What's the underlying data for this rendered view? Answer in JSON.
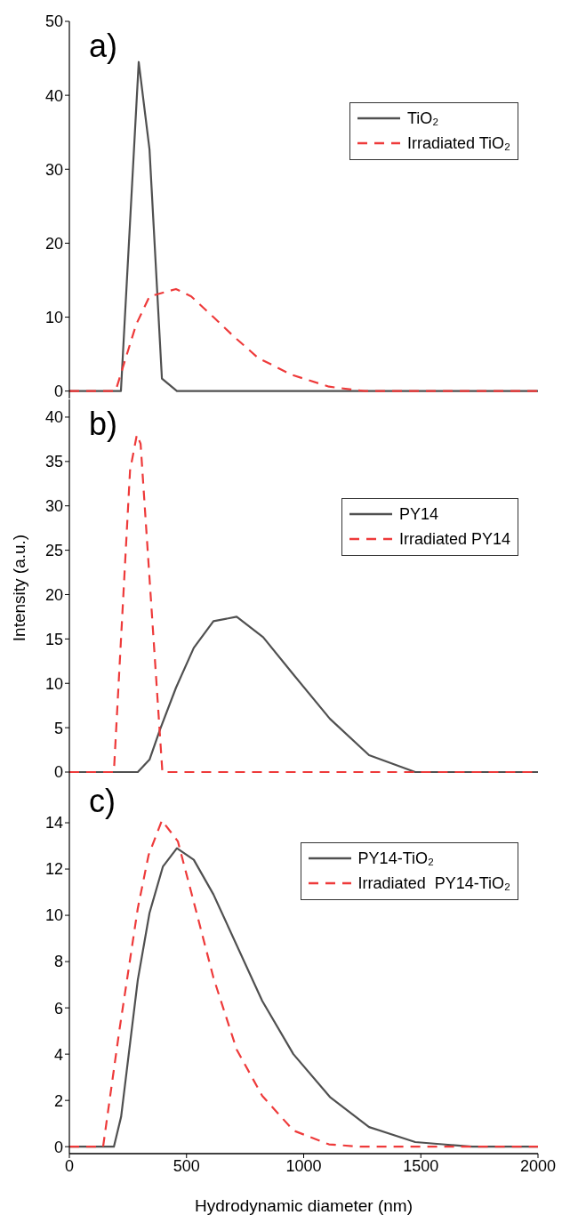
{
  "chart_data": [
    {
      "type": "line",
      "annotations": [
        "a)"
      ],
      "xlim": [
        0,
        2000
      ],
      "xticks": [
        0,
        500,
        1000,
        1500,
        2000
      ],
      "ylim": [
        -1,
        50
      ],
      "yticks": [
        0,
        10,
        20,
        30,
        40,
        50
      ],
      "tick_labels": "y",
      "legend": "top right",
      "grid": false,
      "marker": "none",
      "series": [
        {
          "name": "TiO₂",
          "color": "#505050",
          "line_style": "solid",
          "x": [
            0,
            220,
            296,
            342,
            395,
            459,
            2000
          ],
          "values": [
            0,
            0,
            44.5,
            32.7,
            1.7,
            0,
            0
          ]
        },
        {
          "name": "Irradiated TiO₂",
          "color": "#ee3a3a",
          "line_style": "dashed",
          "x": [
            0,
            197,
            285,
            342,
            455,
            520,
            615,
            698,
            805,
            949,
            1108,
            1260,
            2000
          ],
          "values": [
            0,
            0,
            9,
            12.8,
            13.8,
            12.8,
            10,
            7.5,
            4.5,
            2.2,
            0.6,
            0,
            0
          ]
        }
      ]
    },
    {
      "type": "line",
      "annotations": [
        "b)"
      ],
      "ylabel": "Intensity (a.u.)",
      "xlim": [
        0,
        2000
      ],
      "xticks": [
        0,
        500,
        1000,
        1500,
        2000
      ],
      "ylim": [
        -0.5,
        42
      ],
      "yticks": [
        0,
        5,
        10,
        15,
        20,
        25,
        30,
        35,
        40
      ],
      "tick_labels": "y",
      "legend": "top right",
      "grid": false,
      "marker": "none",
      "series": [
        {
          "name": "PY14",
          "color": "#505050",
          "line_style": "solid",
          "x": [
            0,
            292,
            342,
            387,
            455,
            531,
            615,
            714,
            827,
            956,
            1112,
            1279,
            1476,
            2000
          ],
          "values": [
            0,
            0,
            1.4,
            4.8,
            9.5,
            14,
            17,
            17.5,
            15.2,
            11,
            6,
            1.9,
            0,
            0
          ]
        },
        {
          "name": "Irradiated PY14",
          "color": "#ee3a3a",
          "line_style": "dashed",
          "x": [
            0,
            190,
            259,
            288,
            304,
            397,
            2000
          ],
          "values": [
            0,
            0,
            34,
            38,
            37,
            0,
            0
          ]
        }
      ]
    },
    {
      "type": "line",
      "annotations": [
        "c)"
      ],
      "xlabel": "Hydrodynamic diameter (nm)",
      "xlim": [
        0,
        2000
      ],
      "xticks": [
        0,
        500,
        1000,
        1500,
        2000
      ],
      "ylim": [
        -0.3,
        16
      ],
      "yticks": [
        0,
        2,
        4,
        6,
        8,
        10,
        12,
        14
      ],
      "legend": "top right",
      "grid": false,
      "marker": "none",
      "series": [
        {
          "name": "PY14-TiO₂",
          "color": "#505050",
          "line_style": "solid",
          "x": [
            0,
            190,
            221,
            292,
            342,
            399,
            459,
            531,
            615,
            823,
            956,
            1112,
            1279,
            1476,
            1719,
            2000
          ],
          "values": [
            0,
            0,
            1.3,
            7.2,
            10.1,
            12.1,
            12.9,
            12.4,
            10.9,
            6.3,
            4,
            2.15,
            0.85,
            0.2,
            0,
            0
          ]
        },
        {
          "name": "Irradiated  PY14-TiO₂",
          "color": "#ee3a3a",
          "line_style": "dashed",
          "x": [
            0,
            144,
            213,
            292,
            338,
            395,
            463,
            520,
            615,
            714,
            823,
            956,
            1108,
            1240,
            2000
          ],
          "values": [
            0,
            0,
            5,
            10.3,
            12.6,
            14.1,
            13.2,
            11,
            7.3,
            4.2,
            2.2,
            0.7,
            0.1,
            0,
            0
          ]
        }
      ]
    }
  ]
}
